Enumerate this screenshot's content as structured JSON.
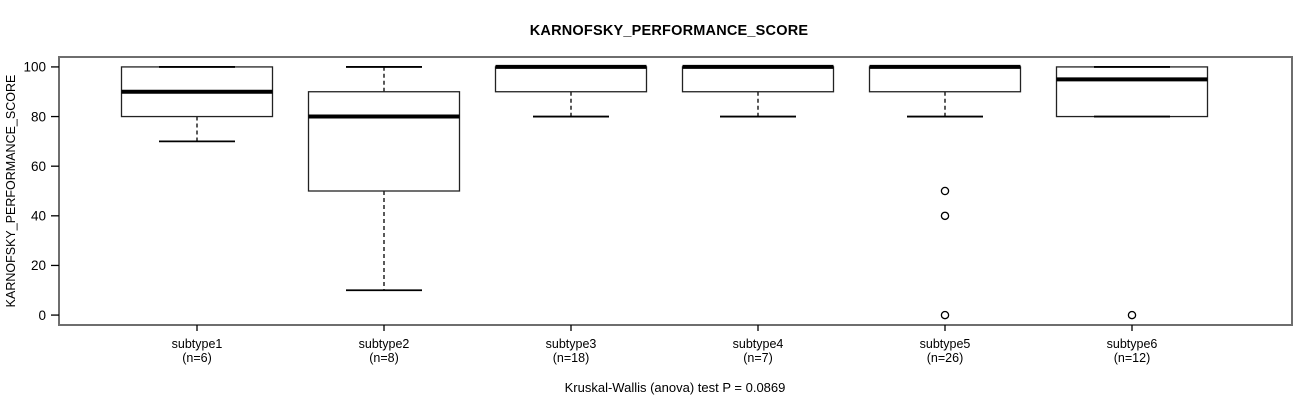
{
  "chart_data": {
    "type": "boxplot",
    "title": "KARNOFSKY_PERFORMANCE_SCORE",
    "ylabel": "KARNOFSKY_PERFORMANCE_SCORE",
    "xlabel": "",
    "annotation": "Kruskal-Wallis (anova) test P = 0.0869",
    "stat_test": "Kruskal-Wallis (anova) test",
    "p_value": "0.0869",
    "ylim": [
      -4,
      104
    ],
    "yticks": [
      0,
      20,
      40,
      60,
      80,
      100
    ],
    "grid": false,
    "legend": "none",
    "colors": {
      "line": "#000000",
      "box_fill": "#ffffff",
      "frame": "#6e6e6e",
      "background": "#ffffff"
    },
    "groups": [
      {
        "label": "subtype1",
        "n_label": "(n=6)",
        "n": 6,
        "whisker_low": 70,
        "q1": 80,
        "median": 90,
        "q3": 100,
        "whisker_high": 100,
        "outliers": []
      },
      {
        "label": "subtype2",
        "n_label": "(n=8)",
        "n": 8,
        "whisker_low": 10,
        "q1": 50,
        "median": 80,
        "q3": 90,
        "whisker_high": 100,
        "outliers": []
      },
      {
        "label": "subtype3",
        "n_label": "(n=18)",
        "n": 18,
        "whisker_low": 80,
        "q1": 90,
        "median": 100,
        "q3": 100,
        "whisker_high": 100,
        "outliers": []
      },
      {
        "label": "subtype4",
        "n_label": "(n=7)",
        "n": 7,
        "whisker_low": 80,
        "q1": 90,
        "median": 100,
        "q3": 100,
        "whisker_high": 100,
        "outliers": []
      },
      {
        "label": "subtype5",
        "n_label": "(n=26)",
        "n": 26,
        "whisker_low": 80,
        "q1": 90,
        "median": 100,
        "q3": 100,
        "whisker_high": 100,
        "outliers": [
          50,
          40,
          0
        ]
      },
      {
        "label": "subtype6",
        "n_label": "(n=12)",
        "n": 12,
        "whisker_low": 80,
        "q1": 80,
        "median": 95,
        "q3": 100,
        "whisker_high": 100,
        "outliers": [
          0
        ]
      }
    ]
  }
}
